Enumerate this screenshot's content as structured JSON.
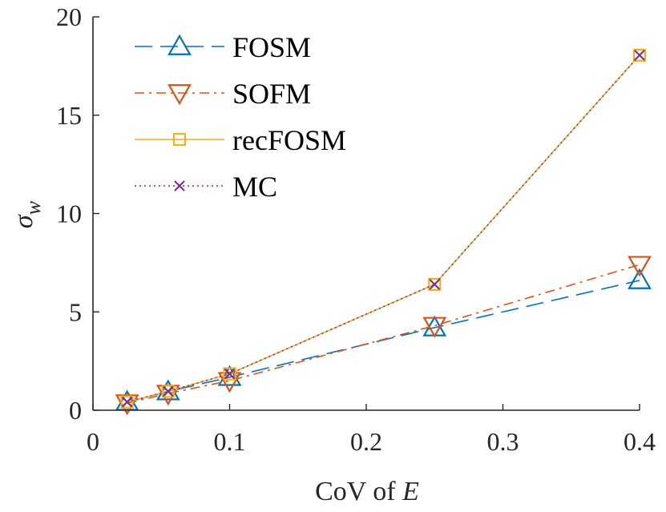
{
  "chart_data": {
    "type": "line",
    "xlabel": "CoV of ",
    "xlabel_var": "E",
    "ylabel_var": "σ",
    "ylabel_sub": "w",
    "xlim": [
      0,
      0.4
    ],
    "ylim": [
      0,
      20
    ],
    "xticks": [
      0,
      0.1,
      0.2,
      0.3,
      0.4
    ],
    "xtick_labels": [
      "0",
      "0.1",
      "0.2",
      "0.3",
      "0.4"
    ],
    "yticks": [
      0,
      5,
      10,
      15,
      20
    ],
    "ytick_labels": [
      "0",
      "5",
      "10",
      "15",
      "20"
    ],
    "grid": false,
    "legend_position": "top-left",
    "x": [
      0.025,
      0.055,
      0.1,
      0.25,
      0.4
    ],
    "series": [
      {
        "name": "FOSM",
        "values": [
          0.42,
          0.95,
          1.68,
          4.2,
          6.6
        ],
        "color": "#0072BD",
        "dash": "long-dash",
        "marker": "triangle-up"
      },
      {
        "name": "SOFM",
        "values": [
          0.36,
          0.85,
          1.5,
          4.3,
          7.4
        ],
        "color": "#D95319",
        "dash": "dash-dot",
        "marker": "triangle-down"
      },
      {
        "name": "recFOSM",
        "values": [
          0.42,
          0.96,
          1.85,
          6.4,
          18.05
        ],
        "color": "#EDB120",
        "dash": "solid",
        "marker": "square"
      },
      {
        "name": "MC",
        "values": [
          0.42,
          0.96,
          1.85,
          6.4,
          18.05
        ],
        "color": "#7E2F8E",
        "dash": "dotted",
        "marker": "x"
      }
    ]
  }
}
